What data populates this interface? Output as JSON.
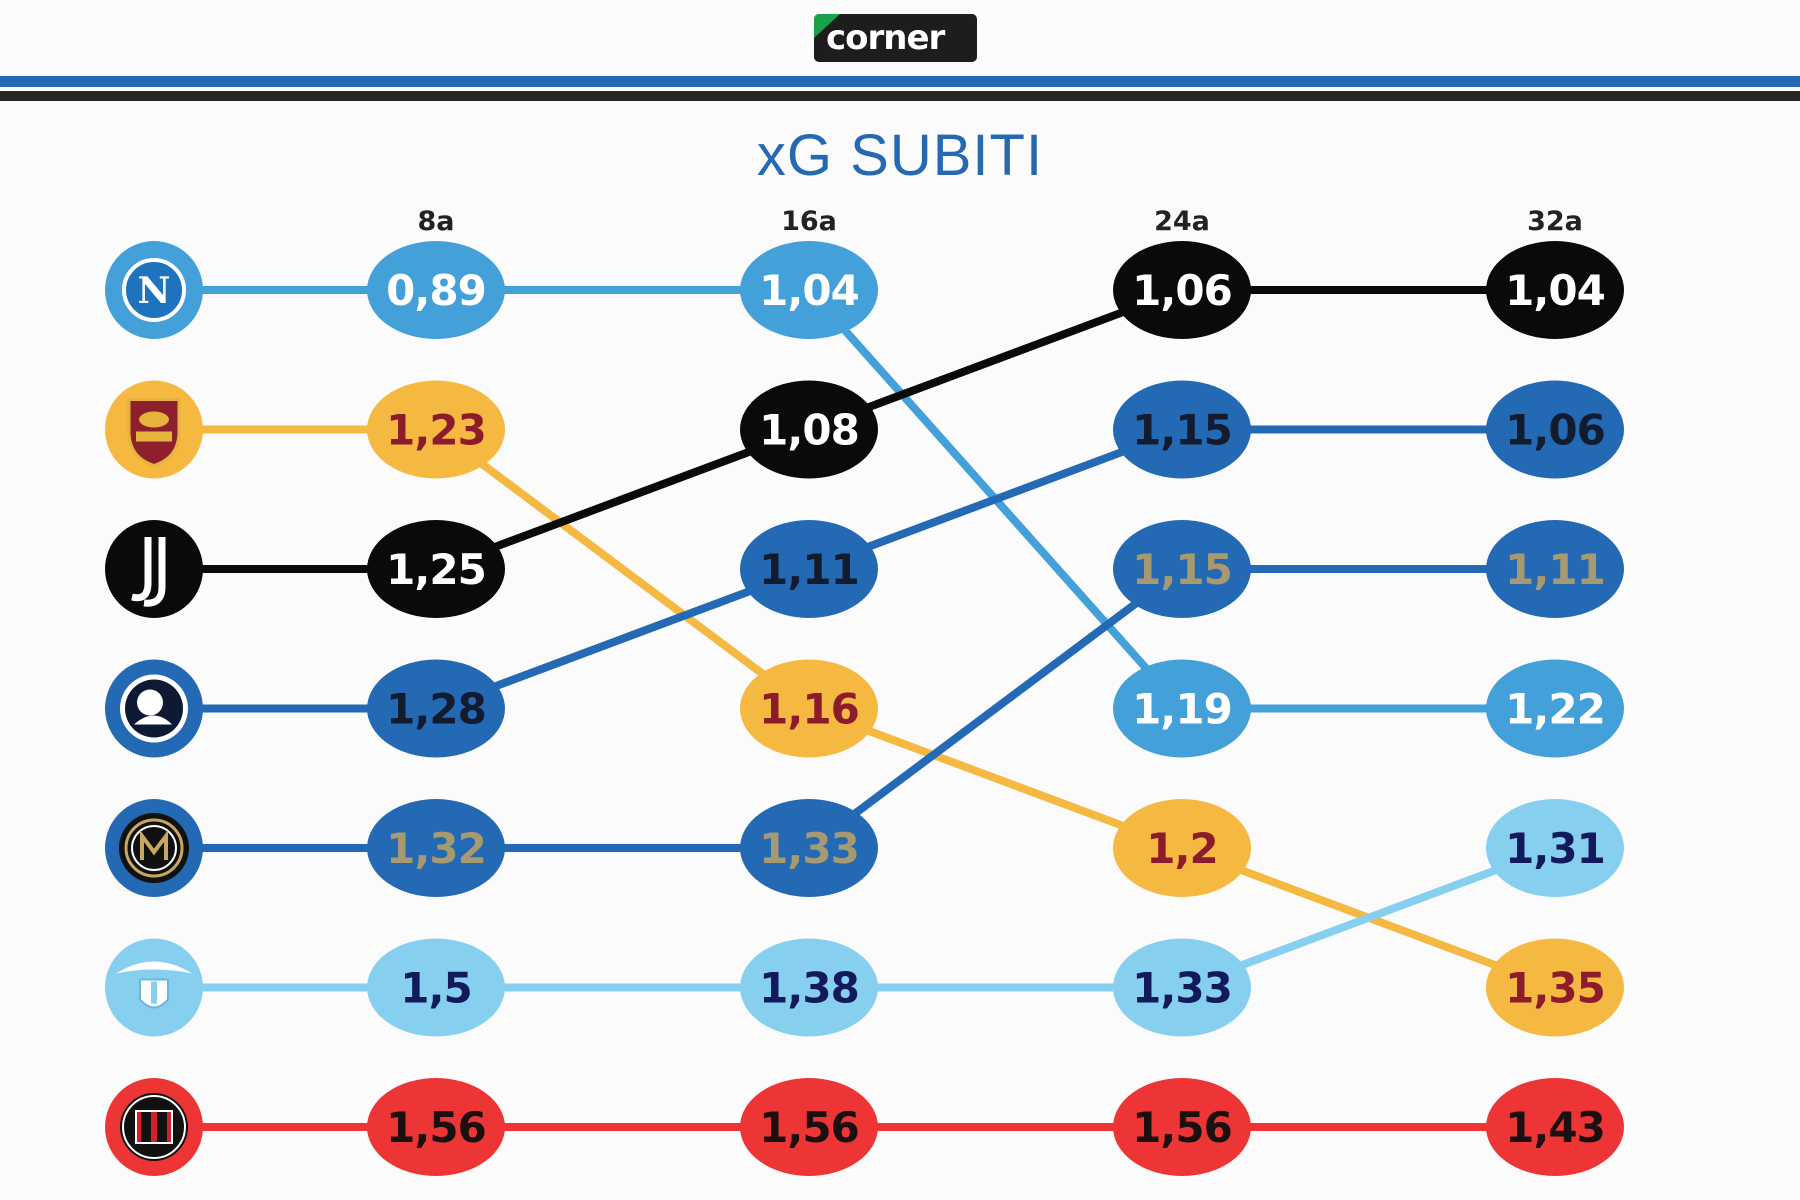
{
  "logo": {
    "text": "corner"
  },
  "chart_data": {
    "type": "line",
    "subtype": "bump",
    "title": "xG SUBITI",
    "categories": [
      "8a",
      "16a",
      "24a",
      "32a"
    ],
    "series": [
      {
        "name": "Napoli",
        "badge": "napoli-badge",
        "color": "#43a0d8",
        "text_color": "#ffffff",
        "values": [
          0.89,
          1.04,
          1.19,
          1.22
        ],
        "labels": [
          "0,89",
          "1,04",
          "1,19",
          "1,22"
        ],
        "ranks": [
          1,
          1,
          4,
          4
        ]
      },
      {
        "name": "Roma",
        "badge": "roma-badge",
        "color": "#f5b942",
        "text_color": "#8c1c2c",
        "values": [
          1.23,
          1.16,
          1.2,
          1.35
        ],
        "labels": [
          "1,23",
          "1,16",
          "1,2",
          "1,35"
        ],
        "ranks": [
          2,
          4,
          5,
          6
        ]
      },
      {
        "name": "Juventus",
        "badge": "juventus-badge",
        "color": "#0a0a0a",
        "text_color": "#ffffff",
        "values": [
          1.25,
          1.08,
          1.06,
          1.04
        ],
        "labels": [
          "1,25",
          "1,08",
          "1,06",
          "1,04"
        ],
        "ranks": [
          3,
          2,
          1,
          1
        ]
      },
      {
        "name": "Atalanta",
        "badge": "atalanta-badge",
        "color": "#2469b3",
        "text_color": "#131b2e",
        "values": [
          1.28,
          1.11,
          1.15,
          1.06
        ],
        "labels": [
          "1,28",
          "1,11",
          "1,15",
          "1,06"
        ],
        "ranks": [
          4,
          3,
          2,
          2
        ]
      },
      {
        "name": "Inter",
        "badge": "inter-badge",
        "color": "#2469b3",
        "text_color": "#a89a70",
        "values": [
          1.32,
          1.33,
          1.15,
          1.11
        ],
        "labels": [
          "1,32",
          "1,33",
          "1,15",
          "1,11"
        ],
        "ranks": [
          5,
          5,
          3,
          3
        ]
      },
      {
        "name": "Lazio",
        "badge": "lazio-badge",
        "color": "#86cfee",
        "text_color": "#131a5c",
        "values": [
          1.5,
          1.38,
          1.33,
          1.31
        ],
        "labels": [
          "1,5",
          "1,38",
          "1,33",
          "1,31"
        ],
        "ranks": [
          6,
          6,
          6,
          5
        ]
      },
      {
        "name": "Milan",
        "badge": "milan-badge",
        "color": "#ee3535",
        "text_color": "#1a1010",
        "values": [
          1.56,
          1.56,
          1.56,
          1.43
        ],
        "labels": [
          "1,56",
          "1,56",
          "1,56",
          "1,43"
        ],
        "ranks": [
          7,
          7,
          7,
          7
        ]
      }
    ]
  }
}
